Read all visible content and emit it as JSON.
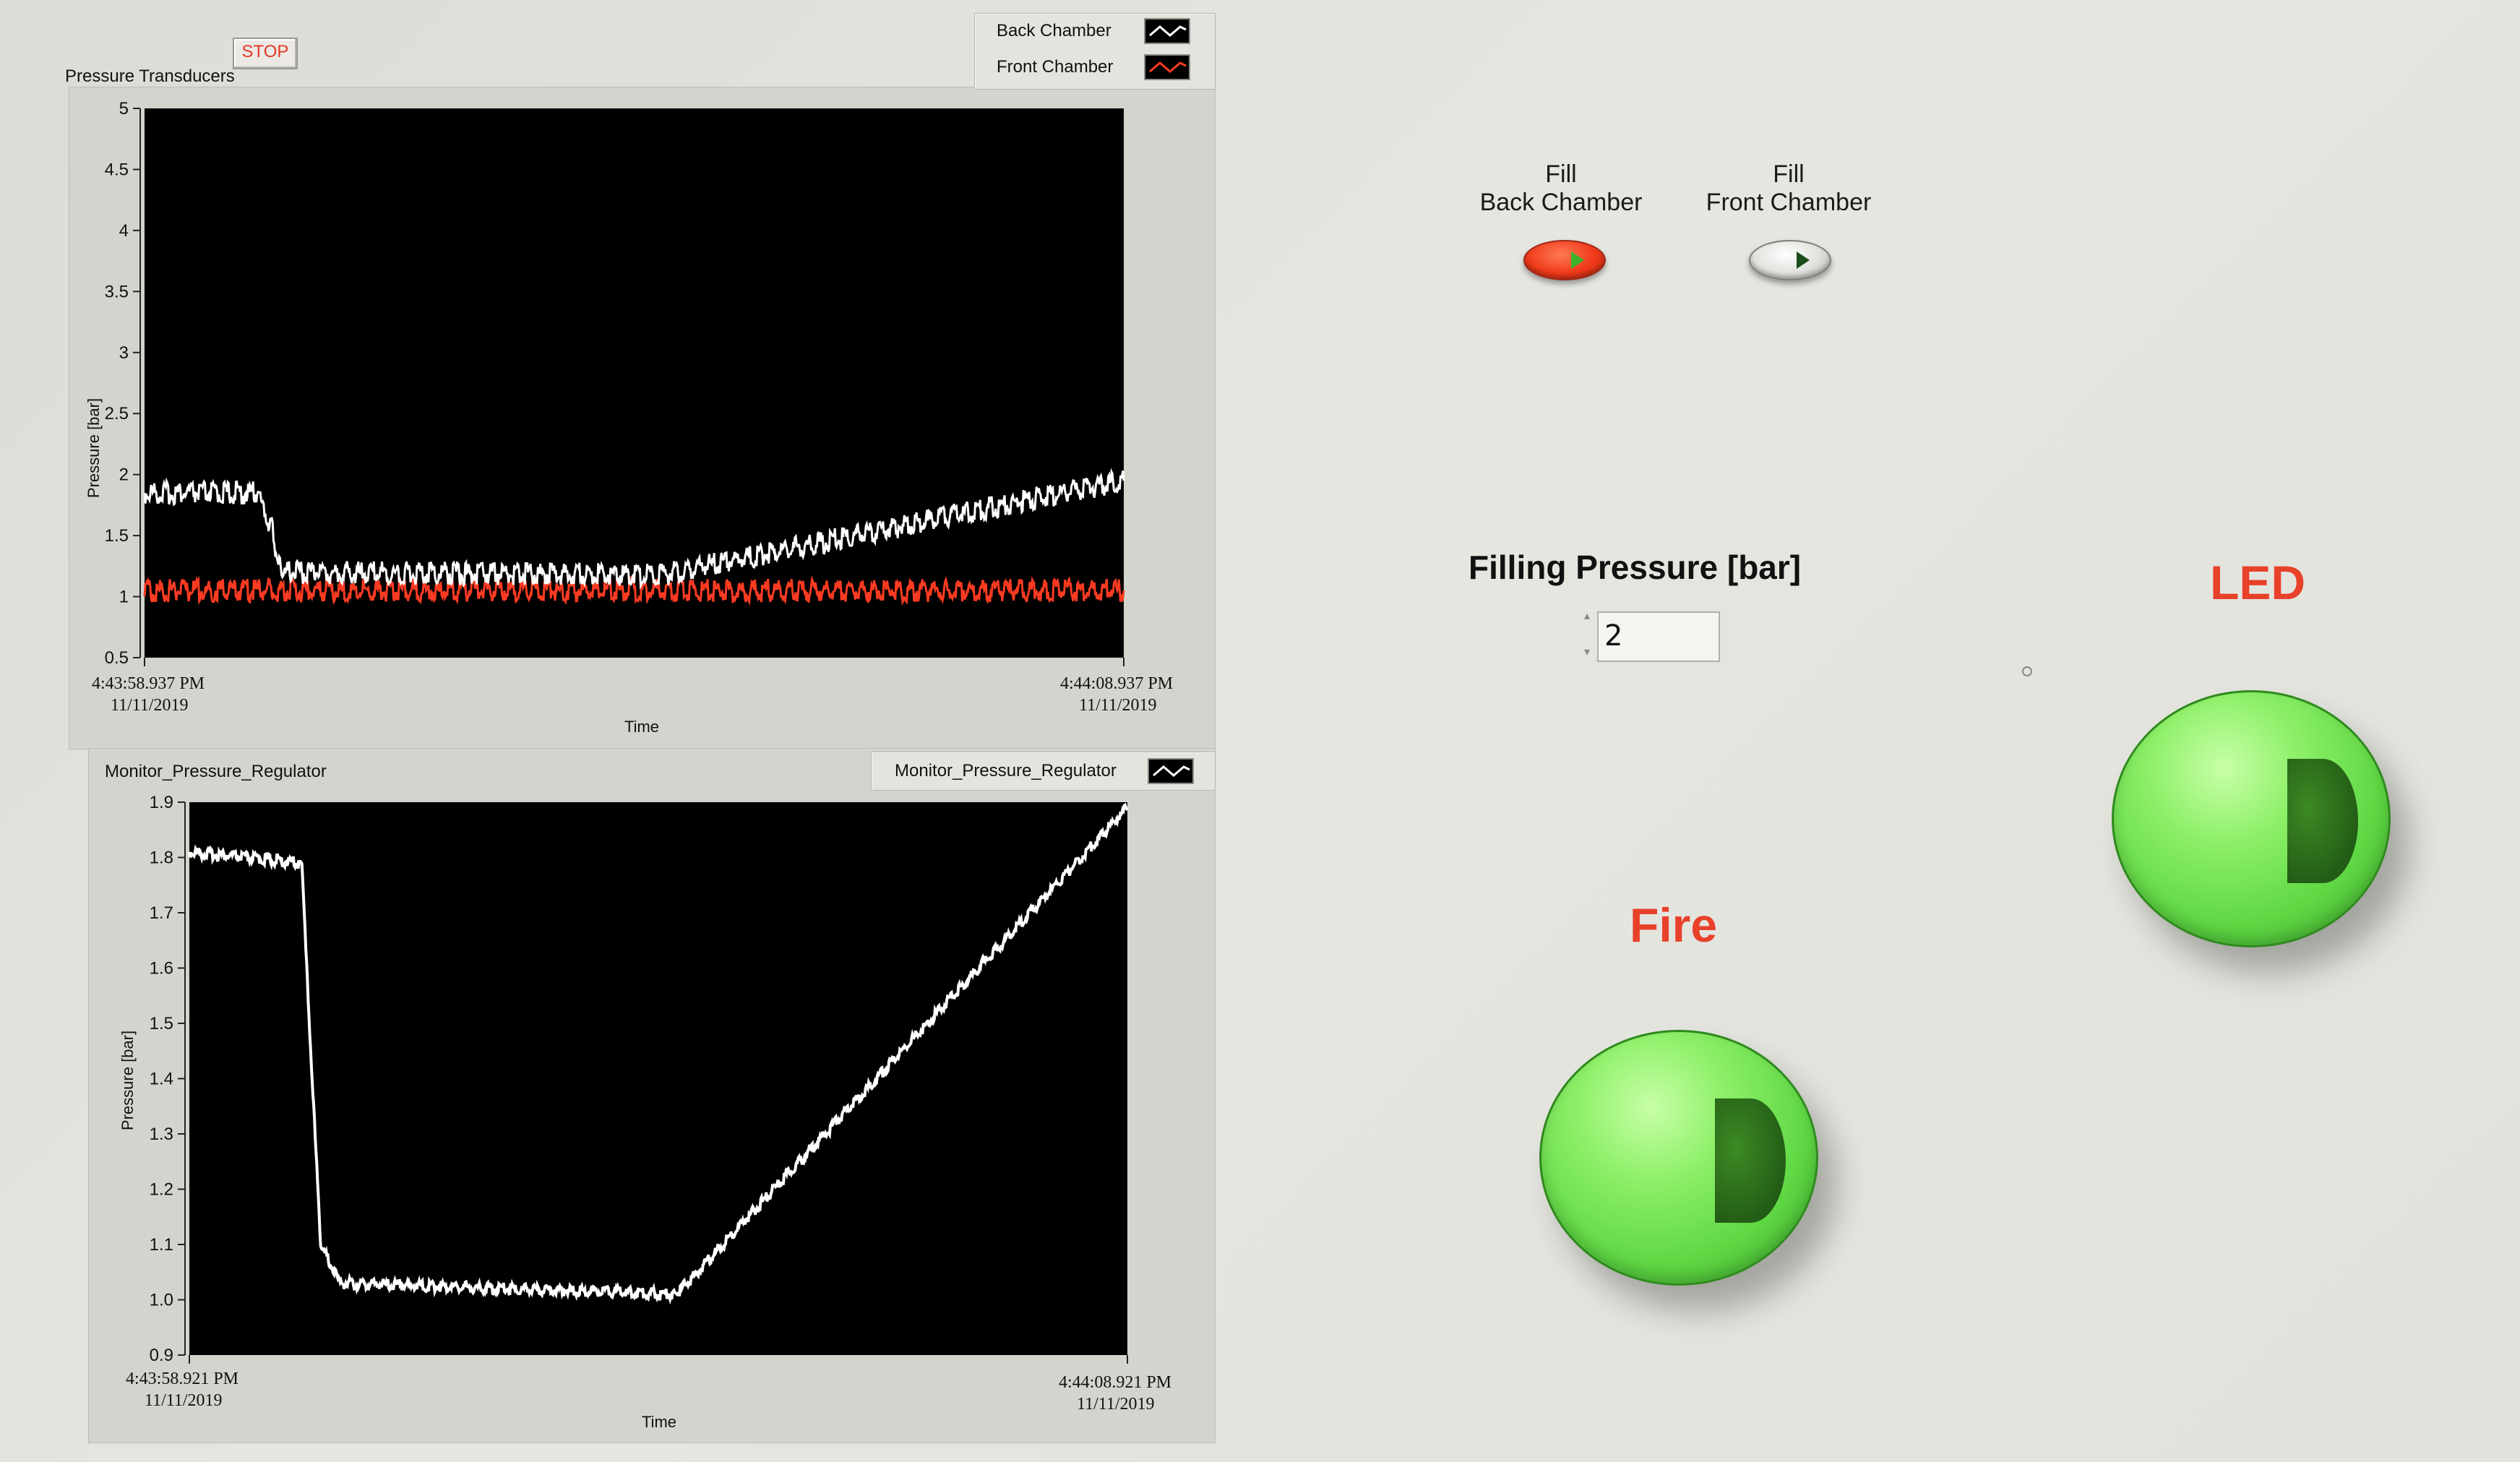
{
  "top_panel": {
    "title": "Pressure Transducers",
    "stop_label": "STOP",
    "legend": [
      {
        "label": "Back Chamber",
        "color": "#ffffff"
      },
      {
        "label": "Front Chamber",
        "color": "#ff3b22"
      }
    ],
    "y_axis_label": "Pressure [bar]",
    "x_axis_label": "Time",
    "start_time": "4:43:58.937 PM",
    "start_date": "11/11/2019",
    "end_time": "4:44:08.937 PM",
    "end_date": "11/11/2019"
  },
  "bottom_panel": {
    "title": "Monitor_Pressure_Regulator",
    "legend_label": "Monitor_Pressure_Regulator",
    "y_axis_label": "Pressure [bar]",
    "x_axis_label": "Time",
    "start_time": "4:43:58.921 PM",
    "start_date": "11/11/2019",
    "end_time": "4:44:08.921 PM",
    "end_date": "11/11/2019"
  },
  "controls": {
    "fill_back": {
      "line1": "Fill",
      "line2": "Back Chamber",
      "state": "on"
    },
    "fill_front": {
      "line1": "Fill",
      "line2": "Front Chamber",
      "state": "off"
    },
    "filling_pressure_label": "Filling Pressure [bar]",
    "filling_pressure_value": "2",
    "fire_label": "Fire",
    "led_label": "LED"
  },
  "colors": {
    "plot_background": "#000000",
    "back_chamber_trace": "#ffffff",
    "front_chamber_trace": "#ff3b22",
    "accent_label": "#e8412a",
    "button_green": "#5fd844"
  },
  "chart_data": [
    {
      "type": "line",
      "title": "Pressure Transducers",
      "xlabel": "Time",
      "ylabel": "Pressure [bar]",
      "ylim": [
        0.5,
        5
      ],
      "yticks": [
        "0.5",
        "1",
        "1.5",
        "2",
        "2.5",
        "3",
        "3.5",
        "4",
        "4.5",
        "5"
      ],
      "x": [
        0,
        1,
        2,
        3,
        4,
        5,
        6,
        7,
        8,
        9,
        10
      ],
      "x_tick_labels": [
        "4:43:58.937 PM 11/11/2019",
        "4:44:08.937 PM 11/11/2019"
      ],
      "legend_position": "top-right",
      "series": [
        {
          "name": "Back Chamber",
          "points": [
            [
              0,
              1.85
            ],
            [
              1.15,
              1.85
            ],
            [
              1.3,
              1.55
            ],
            [
              1.4,
              1.2
            ],
            [
              5.3,
              1.18
            ],
            [
              10,
              1.95
            ]
          ]
        },
        {
          "name": "Front Chamber",
          "points": [
            [
              0,
              1.05
            ],
            [
              10,
              1.05
            ]
          ]
        }
      ]
    },
    {
      "type": "line",
      "title": "Monitor_Pressure_Regulator",
      "xlabel": "Time",
      "ylabel": "Pressure [bar]",
      "ylim": [
        0.9,
        1.9
      ],
      "yticks": [
        "0.9",
        "1.0",
        "1.1",
        "1.2",
        "1.3",
        "1.4",
        "1.5",
        "1.6",
        "1.7",
        "1.8",
        "1.9"
      ],
      "x_tick_labels": [
        "4:43:58.921 PM 11/11/2019",
        "4:44:08.921 PM 11/11/2019"
      ],
      "legend_position": "top-right",
      "series": [
        {
          "name": "Monitor_Pressure_Regulator",
          "points": [
            [
              0,
              1.81
            ],
            [
              1.2,
              1.79
            ],
            [
              1.25,
              1.6
            ],
            [
              1.4,
              1.1
            ],
            [
              1.6,
              1.03
            ],
            [
              5.2,
              1.01
            ],
            [
              5.25,
              1.02
            ],
            [
              10,
              1.89
            ]
          ]
        }
      ]
    }
  ]
}
